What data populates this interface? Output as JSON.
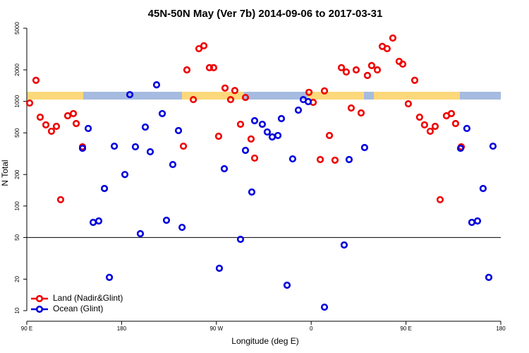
{
  "chart_data": {
    "type": "scatter",
    "title": "45N-50N May (Ver 7b)   2014-09-06 to 2017-03-31",
    "xlabel": "Longitude (deg E)",
    "ylabel": "N Total",
    "log_y": true,
    "legend": "bottom-left",
    "reference_line": 50,
    "xlim": [
      90,
      540
    ],
    "ylim": [
      10,
      5000
    ],
    "xticks": [
      {
        "value": 90,
        "label": "90 E"
      },
      180,
      {
        "value": 270,
        "label": "90 W"
      },
      {
        "value": 360,
        "label": "0"
      },
      {
        "value": 450,
        "label": "90 E"
      },
      {
        "value": 540,
        "label": "180"
      }
    ],
    "yticks": [
      10,
      20,
      50,
      100,
      200,
      500,
      1000,
      2000,
      5000
    ],
    "series": [
      {
        "name": "Land (Nadir&Glint)",
        "color": "#ee0000",
        "x": [
          92.7,
          98.7,
          102.7,
          108.1,
          113.4,
          118.1,
          122.1,
          128.8,
          134.2,
          136.9,
          142.9,
          238.7,
          242,
          248.1,
          253.4,
          258.1,
          263.4,
          267.4,
          272.1,
          278.2,
          283.5,
          287.5,
          292.9,
          297.6,
          302.9,
          306.3,
          357.9,
          361.9,
          368.6,
          372.6,
          377.3,
          382.6,
          388.7,
          393.3,
          398,
          402.7,
          407.4,
          413.4,
          417.4,
          422.8,
          427.5,
          432.1,
          437.5,
          443.5,
          446.9,
          452.2,
          458.3,
          462.9,
          467.6,
          473,
          477.7,
          482.4,
          488.4,
          493.1,
          497.1,
          502.5
        ],
        "values": [
          964,
          1590,
          706,
          596,
          518,
          577,
          115,
          728,
          764,
          614,
          368,
          373,
          2000,
          1040,
          3190,
          3400,
          2100,
          2100,
          464,
          1340,
          1040,
          1270,
          604,
          1090,
          437,
          287,
          1220,
          979,
          278,
          1260,
          472,
          274,
          2100,
          1910,
          864,
          2000,
          775,
          1770,
          2200,
          2000,
          3350,
          3190,
          4030,
          2410,
          2270,
          949,
          1590,
          706,
          596,
          518,
          577,
          115,
          728,
          764,
          614,
          368
        ]
      },
      {
        "name": "Ocean (Glint)",
        "color": "#0000dd",
        "x": [
          142.9,
          148.3,
          153,
          158.3,
          163.7,
          168.4,
          173.1,
          183.1,
          187.8,
          193.1,
          197.8,
          202.5,
          207.2,
          213.2,
          218.6,
          222.6,
          228.6,
          234,
          237.4,
          272.8,
          277.5,
          292.9,
          297.6,
          303.6,
          306.3,
          313.6,
          318.3,
          323,
          328.4,
          331.7,
          337.1,
          342.4,
          347.8,
          352.5,
          357.2,
          372.6,
          391.3,
          396,
          410.7,
          501.8,
          507.8,
          512.5,
          517.9,
          523.2,
          528.6,
          532.6
        ],
        "values": [
          356,
          551,
          69.7,
          71.9,
          147,
          20.8,
          373,
          200,
          1160,
          368,
          54.4,
          568,
          330,
          1440,
          764,
          73.1,
          249,
          526,
          62.5,
          25.4,
          227,
          48,
          340,
          136,
          653,
          604,
          510,
          457,
          472,
          684,
          17.5,
          282,
          825,
          1040,
          994,
          10.8,
          42.4,
          278,
          362,
          356,
          551,
          69.7,
          71.9,
          147,
          20.8,
          373
        ]
      }
    ]
  }
}
